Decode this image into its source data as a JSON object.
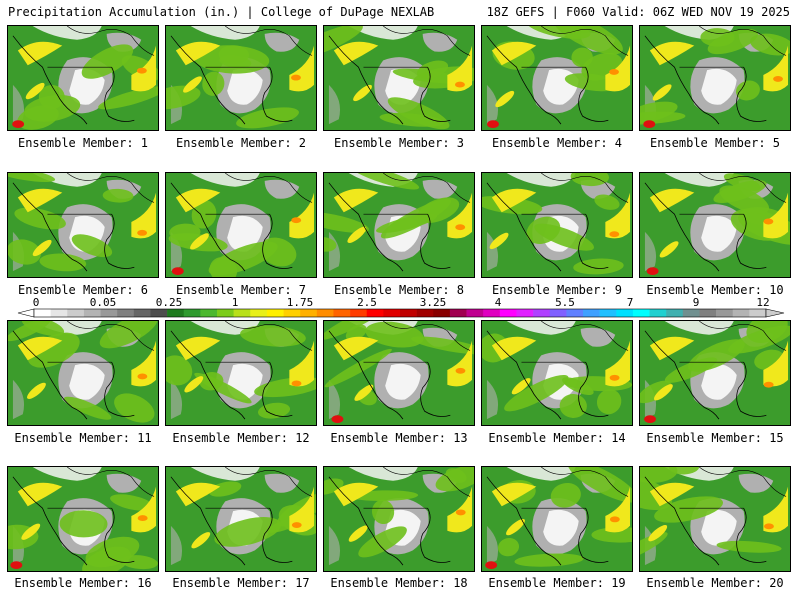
{
  "header": {
    "title": "Precipitation Accumulation (in.) | College of DuPage NEXLAB",
    "run_info": "18Z GEFS | F060 Valid: 06Z WED NOV 19 2025"
  },
  "panels": [
    {
      "label": "Ensemble Member:",
      "member": "1"
    },
    {
      "label": "Ensemble Member:",
      "member": "2"
    },
    {
      "label": "Ensemble Member:",
      "member": "3"
    },
    {
      "label": "Ensemble Member:",
      "member": "4"
    },
    {
      "label": "Ensemble Member:",
      "member": "5"
    },
    {
      "label": "Ensemble Member:",
      "member": "6"
    },
    {
      "label": "Ensemble Member:",
      "member": "7"
    },
    {
      "label": "Ensemble Member:",
      "member": "8"
    },
    {
      "label": "Ensemble Member:",
      "member": "9"
    },
    {
      "label": "Ensemble Member:",
      "member": "10"
    },
    {
      "label": "Ensemble Member:",
      "member": "11"
    },
    {
      "label": "Ensemble Member:",
      "member": "12"
    },
    {
      "label": "Ensemble Member:",
      "member": "13"
    },
    {
      "label": "Ensemble Member:",
      "member": "14"
    },
    {
      "label": "Ensemble Member:",
      "member": "15"
    },
    {
      "label": "Ensemble Member:",
      "member": "16"
    },
    {
      "label": "Ensemble Member:",
      "member": "17"
    },
    {
      "label": "Ensemble Member:",
      "member": "18"
    },
    {
      "label": "Ensemble Member:",
      "member": "19"
    },
    {
      "label": "Ensemble Member:",
      "member": "20"
    }
  ],
  "colorbar": {
    "tick_labels": [
      "0",
      "0.05",
      "0.25",
      "1",
      "1.75",
      "2.5",
      "3.25",
      "4",
      "5.5",
      "7",
      "9",
      "12"
    ],
    "colors": [
      "#ffffff",
      "#e6e6e6",
      "#cccccc",
      "#b3b3b3",
      "#999999",
      "#808080",
      "#666666",
      "#4d4d4d",
      "#1e7a1e",
      "#2e9a2e",
      "#4cb82e",
      "#7ccc1a",
      "#b8e01a",
      "#e8f01a",
      "#fff000",
      "#ffd000",
      "#ffb000",
      "#ff8c00",
      "#ff6400",
      "#ff3c00",
      "#ff0000",
      "#e00000",
      "#c00000",
      "#a00000",
      "#880000",
      "#a00050",
      "#c00090",
      "#e000c0",
      "#ff00ff",
      "#e020ff",
      "#b040ff",
      "#8060ff",
      "#6080ff",
      "#40a0ff",
      "#20c0ff",
      "#00e0ff",
      "#00ffff",
      "#20d0d0",
      "#40b0b0",
      "#709090",
      "#808080",
      "#999999",
      "#b3b3b3",
      "#cccccc"
    ]
  },
  "map_colors": {
    "dry": "#f4f4f4",
    "trace": "#b0b0b0",
    "light": "#3c9c2c",
    "moderate": "#6ec01c",
    "heavy": "#f0e81c",
    "very_heavy": "#ff9000",
    "extreme": "#e01010"
  }
}
